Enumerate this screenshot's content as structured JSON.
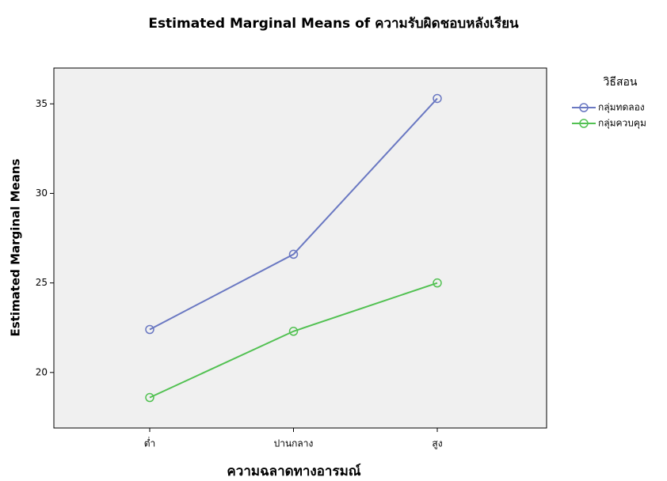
{
  "chart_data": {
    "type": "line",
    "title": "Estimated Marginal Means of ความรับผิดชอบหลังเรียน",
    "x_label": "ความฉลาดทางอารมณ์",
    "y_label": "Estimated Marginal Means",
    "legend_title": "วิธีสอน",
    "categories": [
      "ต่ำ",
      "ปานกลาง",
      "สูง"
    ],
    "series": [
      {
        "name": "กลุ่มทดลอง",
        "color": "#6a78c2",
        "values": [
          22.4,
          26.6,
          35.3
        ]
      },
      {
        "name": "กลุ่มควบคุม",
        "color": "#52c152",
        "values": [
          18.6,
          22.3,
          25.0
        ]
      }
    ],
    "ylim": [
      16.9,
      37
    ],
    "yticks": [
      20,
      25,
      30,
      35
    ],
    "legend": "right",
    "markers": true
  }
}
